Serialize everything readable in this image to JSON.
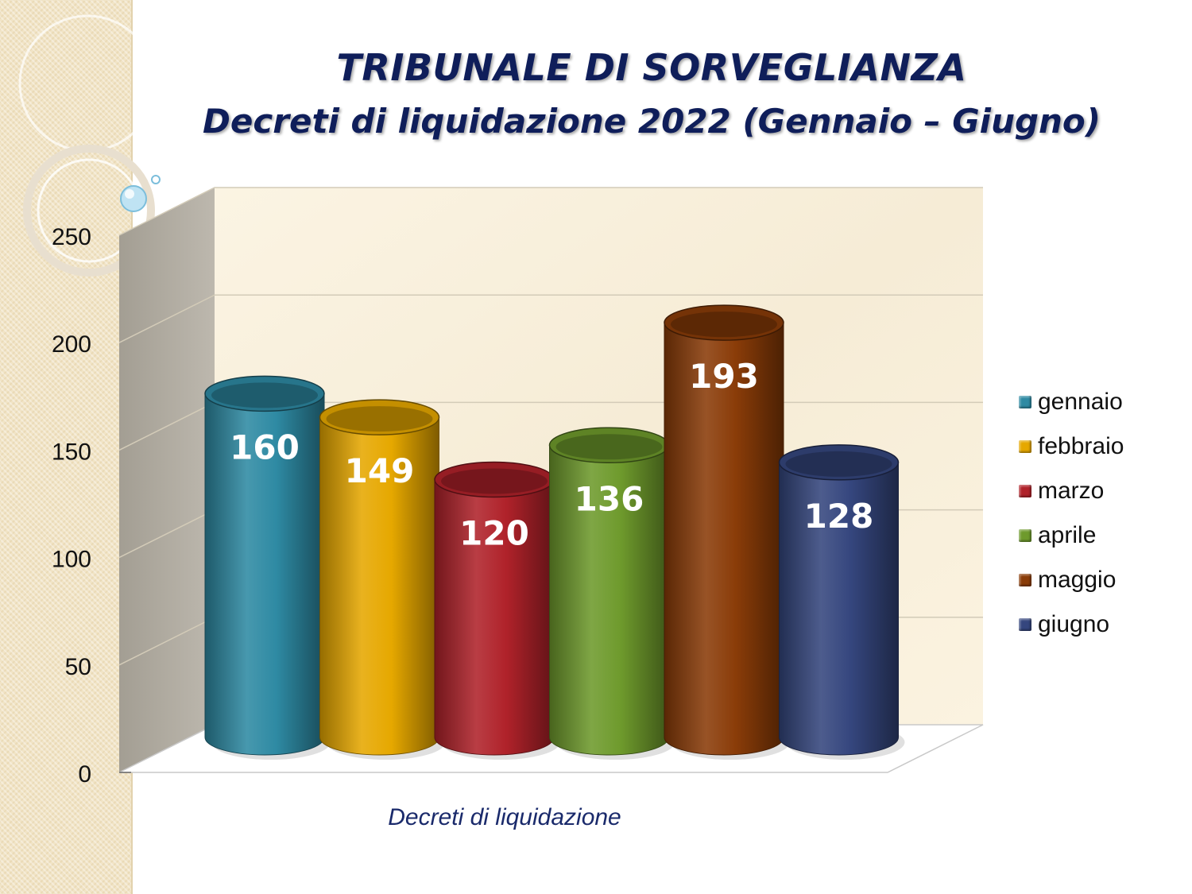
{
  "title_line1": "TRIBUNALE DI SORVEGLIANZA",
  "title_line2": "Decreti di liquidazione 2022 (Gennaio – Giugno)",
  "chart_data": {
    "type": "bar",
    "style": "3d-cylinder",
    "categories": [
      "Decreti di liquidazione"
    ],
    "xlabel": "Decreti di liquidazione",
    "ylim": [
      0,
      250
    ],
    "yticks": [
      "0",
      "50",
      "100",
      "150",
      "200",
      "250"
    ],
    "grid": true,
    "legend_position": "right",
    "data_labels": true,
    "series": [
      {
        "name": "gennaio",
        "values": [
          160
        ],
        "color": "#2e8aa3"
      },
      {
        "name": "febbraio",
        "values": [
          149
        ],
        "color": "#e6a800"
      },
      {
        "name": "marzo",
        "values": [
          120
        ],
        "color": "#b0222a"
      },
      {
        "name": "aprile",
        "values": [
          136
        ],
        "color": "#6e9a2c"
      },
      {
        "name": "maggio",
        "values": [
          193
        ],
        "color": "#8a3c08"
      },
      {
        "name": "giugno",
        "values": [
          128
        ],
        "color": "#35467e"
      }
    ]
  }
}
